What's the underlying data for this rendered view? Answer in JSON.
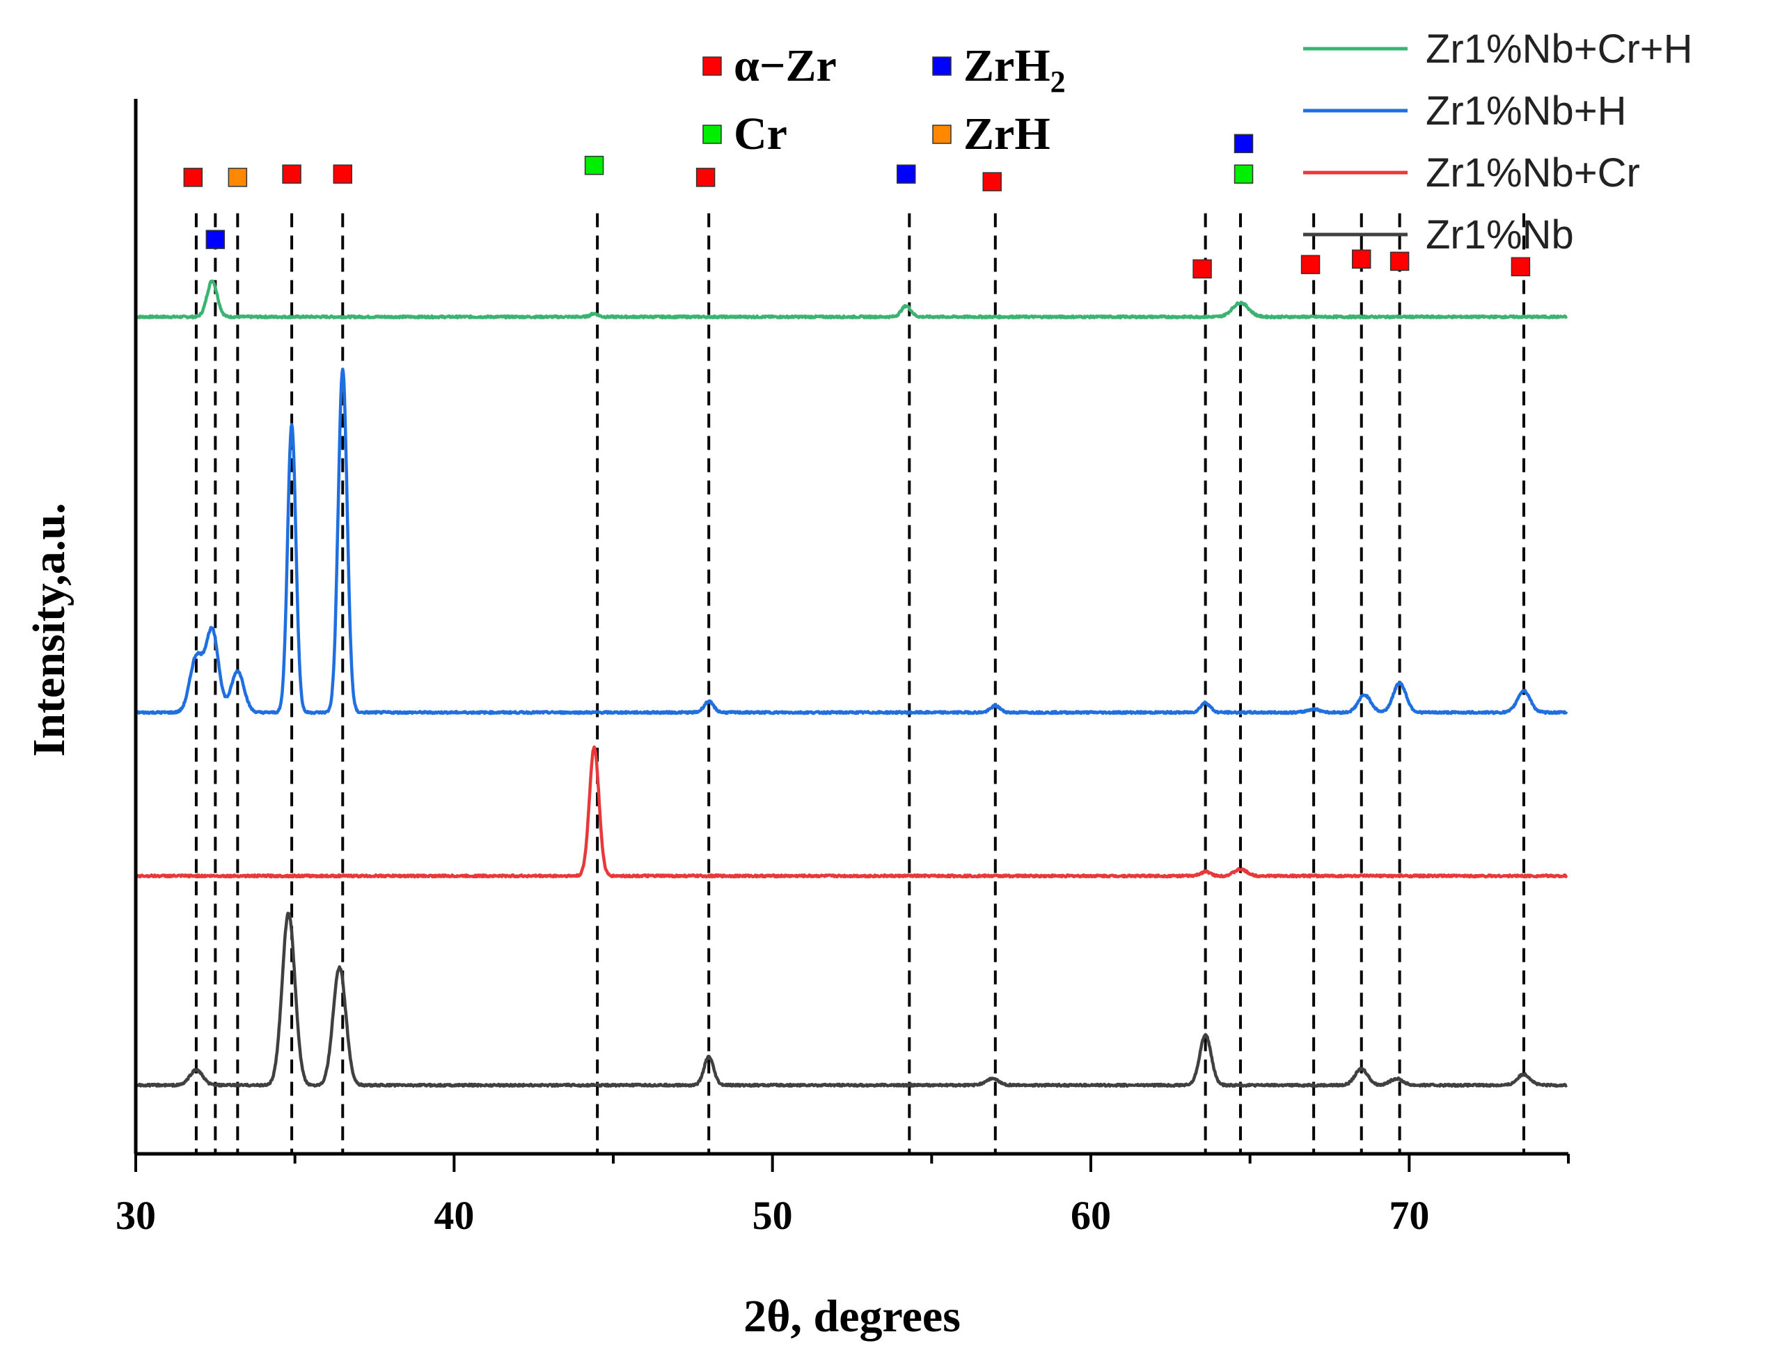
{
  "chart_data": {
    "type": "line",
    "title": "",
    "xlabel": "2θ, degrees",
    "ylabel": "Intensity,a.u.",
    "xlim": [
      30,
      75
    ],
    "xticks": [
      30,
      40,
      50,
      60,
      70
    ],
    "ylim": [
      0,
      100
    ],
    "grid": false,
    "legend_position": "top-right",
    "colors": {
      "alpha_zr": "#ff0000",
      "zrh2": "#0000ff",
      "cr": "#00ee00",
      "zrh": "#ff8800",
      "zr_nb_cr_h": "#3cb371",
      "zr_nb_h": "#1f6fe0",
      "zr_nb_cr": "#e8383a",
      "zr_nb": "#404040"
    },
    "series": [
      {
        "name": "Zr1%Nb+Cr+H",
        "color": "#3cb371",
        "baseline": 76.8,
        "peaks": [
          [
            32.4,
            3.3,
            0.16
          ],
          [
            44.4,
            0.3,
            0.12
          ],
          [
            54.2,
            1.0,
            0.15
          ],
          [
            64.7,
            1.3,
            0.25
          ]
        ]
      },
      {
        "name": "Zr1%Nb+H",
        "color": "#1f6fe0",
        "baseline": 40.5,
        "peaks": [
          [
            31.9,
            5.0,
            0.2
          ],
          [
            32.4,
            7.5,
            0.2
          ],
          [
            33.2,
            3.8,
            0.2
          ],
          [
            34.9,
            26.5,
            0.13
          ],
          [
            36.5,
            31.5,
            0.14
          ],
          [
            48.0,
            1.0,
            0.15
          ],
          [
            57.0,
            0.6,
            0.15
          ],
          [
            63.6,
            0.9,
            0.15
          ],
          [
            67.0,
            0.3,
            0.2
          ],
          [
            68.6,
            1.6,
            0.2
          ],
          [
            69.7,
            2.7,
            0.2
          ],
          [
            73.6,
            2.0,
            0.2
          ]
        ]
      },
      {
        "name": "Zr1%Nb+Cr",
        "color": "#e8383a",
        "baseline": 25.5,
        "peaks": [
          [
            44.4,
            11.8,
            0.15
          ],
          [
            63.6,
            0.4,
            0.15
          ],
          [
            64.7,
            0.6,
            0.2
          ]
        ]
      },
      {
        "name": "Zr1%Nb",
        "color": "#404040",
        "baseline": 6.3,
        "peaks": [
          [
            31.9,
            1.4,
            0.2
          ],
          [
            34.8,
            15.8,
            0.2
          ],
          [
            36.4,
            10.8,
            0.2
          ],
          [
            48.0,
            2.6,
            0.15
          ],
          [
            56.9,
            0.6,
            0.2
          ],
          [
            63.6,
            4.6,
            0.18
          ],
          [
            68.5,
            1.5,
            0.2
          ],
          [
            69.6,
            0.6,
            0.2
          ],
          [
            73.6,
            1.0,
            0.2
          ]
        ]
      }
    ],
    "reference_lines": [
      31.9,
      32.5,
      33.2,
      34.9,
      36.5,
      44.5,
      48.0,
      54.3,
      57.0,
      63.6,
      64.7,
      67.0,
      68.5,
      69.7,
      73.6
    ],
    "phase_markers": [
      {
        "phase": "alpha_zr",
        "x": 31.8,
        "y": 89.6
      },
      {
        "phase": "zrh2",
        "x": 32.5,
        "y": 83.9
      },
      {
        "phase": "zrh",
        "x": 33.2,
        "y": 89.6
      },
      {
        "phase": "alpha_zr",
        "x": 34.9,
        "y": 89.9
      },
      {
        "phase": "alpha_zr",
        "x": 36.5,
        "y": 89.9
      },
      {
        "phase": "cr",
        "x": 44.4,
        "y": 90.7
      },
      {
        "phase": "alpha_zr",
        "x": 47.9,
        "y": 89.6
      },
      {
        "phase": "zrh2",
        "x": 54.2,
        "y": 89.9
      },
      {
        "phase": "alpha_zr",
        "x": 56.9,
        "y": 89.2
      },
      {
        "phase": "zrh2",
        "x": 64.8,
        "y": 92.7
      },
      {
        "phase": "cr",
        "x": 64.8,
        "y": 89.9
      },
      {
        "phase": "alpha_zr",
        "x": 63.5,
        "y": 81.2
      },
      {
        "phase": "alpha_zr",
        "x": 66.9,
        "y": 81.6
      },
      {
        "phase": "alpha_zr",
        "x": 68.5,
        "y": 82.1
      },
      {
        "phase": "alpha_zr",
        "x": 69.7,
        "y": 81.9
      },
      {
        "phase": "alpha_zr",
        "x": 73.5,
        "y": 81.4
      }
    ],
    "phase_legend": [
      {
        "phase": "alpha_zr",
        "label": "α−Zr",
        "sub": ""
      },
      {
        "phase": "zrh2",
        "label": "ZrH",
        "sub": "2"
      },
      {
        "phase": "cr",
        "label": "Cr",
        "sub": ""
      },
      {
        "phase": "zrh",
        "label": "ZrH",
        "sub": ""
      }
    ]
  }
}
